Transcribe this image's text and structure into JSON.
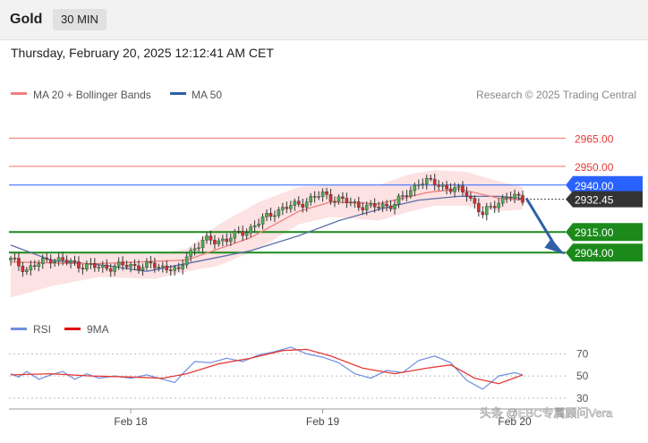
{
  "header": {
    "symbol": "Gold",
    "timeframe": "30 MIN"
  },
  "timestamp": "Thursday, February 20, 2025 12:12:41 AM CET",
  "legend": {
    "ma20_bb": "MA 20 + Bollinger Bands",
    "ma50": "MA 50",
    "credit": "Research © 2025 Trading Central"
  },
  "rsi_legend": {
    "rsi": "RSI",
    "ma9": "9MA"
  },
  "watermark": "头条 @EBC专属顾问Vera",
  "colors": {
    "red_level": "#ef5350",
    "blue_level": "#2962ff",
    "green_level": "#1b8a1b",
    "candle_up": "#4caf50",
    "candle_down": "#d32f2f",
    "bb_fill": "#fbd8d8",
    "ma20": "#f08080",
    "ma50": "#5b6fa8",
    "arrow": "#2e5fa7"
  },
  "chart_data": [
    {
      "type": "candlestick",
      "y_range": [
        2875,
        2980
      ],
      "x_ticks": [
        {
          "label": "Feb 18",
          "index": 30
        },
        {
          "label": "Feb 19",
          "index": 78
        },
        {
          "label": "Feb 20",
          "index": 126
        }
      ],
      "levels": [
        {
          "value": 2965.0,
          "label": "2965.00",
          "kind": "resistance"
        },
        {
          "value": 2950.0,
          "label": "2950.00",
          "kind": "resistance"
        },
        {
          "value": 2940.0,
          "label": "2940.00",
          "kind": "pivot"
        },
        {
          "value": 2915.0,
          "label": "2915.00",
          "kind": "support"
        },
        {
          "value": 2904.0,
          "label": "2904.00",
          "kind": "support"
        }
      ],
      "last_price": {
        "value": 2932.45,
        "label": "2932.45"
      },
      "forecast": {
        "from": 2933,
        "to": 2904
      },
      "close_keypoints": [
        [
          0,
          2900
        ],
        [
          4,
          2895
        ],
        [
          10,
          2901
        ],
        [
          16,
          2898
        ],
        [
          22,
          2896
        ],
        [
          28,
          2897
        ],
        [
          35,
          2897
        ],
        [
          40,
          2896
        ],
        [
          42,
          2893
        ],
        [
          44,
          2903
        ],
        [
          48,
          2910
        ],
        [
          54,
          2911
        ],
        [
          60,
          2917
        ],
        [
          66,
          2926
        ],
        [
          72,
          2930
        ],
        [
          78,
          2935
        ],
        [
          84,
          2931
        ],
        [
          90,
          2928
        ],
        [
          96,
          2930
        ],
        [
          100,
          2937
        ],
        [
          102,
          2942
        ],
        [
          106,
          2941
        ],
        [
          110,
          2938
        ],
        [
          114,
          2936
        ],
        [
          118,
          2924
        ],
        [
          121,
          2930
        ],
        [
          124,
          2934
        ],
        [
          128,
          2932.45
        ]
      ],
      "ma20": [
        [
          0,
          2899
        ],
        [
          20,
          2898
        ],
        [
          44,
          2900
        ],
        [
          60,
          2912
        ],
        [
          72,
          2926
        ],
        [
          80,
          2931
        ],
        [
          92,
          2930
        ],
        [
          104,
          2936
        ],
        [
          112,
          2938
        ],
        [
          122,
          2933
        ],
        [
          128,
          2932
        ]
      ],
      "ma50": [
        [
          0,
          2908
        ],
        [
          10,
          2900
        ],
        [
          24,
          2897
        ],
        [
          34,
          2894
        ],
        [
          46,
          2899
        ],
        [
          60,
          2905
        ],
        [
          72,
          2913
        ],
        [
          82,
          2921
        ],
        [
          92,
          2927
        ],
        [
          102,
          2932
        ],
        [
          112,
          2934
        ],
        [
          122,
          2934
        ],
        [
          128,
          2933
        ]
      ],
      "bb_upper": [
        [
          0,
          2905
        ],
        [
          10,
          2903
        ],
        [
          22,
          2904
        ],
        [
          36,
          2903
        ],
        [
          44,
          2906
        ],
        [
          52,
          2919
        ],
        [
          62,
          2931
        ],
        [
          72,
          2939
        ],
        [
          80,
          2940
        ],
        [
          92,
          2940
        ],
        [
          100,
          2946
        ],
        [
          106,
          2948
        ],
        [
          114,
          2947
        ],
        [
          122,
          2942
        ],
        [
          128,
          2939
        ]
      ],
      "bb_lower": [
        [
          0,
          2880
        ],
        [
          10,
          2886
        ],
        [
          22,
          2891
        ],
        [
          36,
          2890
        ],
        [
          44,
          2894
        ],
        [
          52,
          2897
        ],
        [
          62,
          2906
        ],
        [
          72,
          2919
        ],
        [
          80,
          2923
        ],
        [
          92,
          2921
        ],
        [
          100,
          2926
        ],
        [
          106,
          2929
        ],
        [
          114,
          2929
        ],
        [
          122,
          2926
        ],
        [
          128,
          2927
        ]
      ]
    },
    {
      "type": "line",
      "name": "RSI",
      "y_ticks": [
        70,
        50,
        30
      ],
      "y_range": [
        25,
        80
      ],
      "rsi": [
        [
          0,
          52
        ],
        [
          2,
          49
        ],
        [
          4,
          54
        ],
        [
          7,
          47
        ],
        [
          10,
          51
        ],
        [
          13,
          54
        ],
        [
          16,
          47
        ],
        [
          19,
          52
        ],
        [
          22,
          48
        ],
        [
          26,
          50
        ],
        [
          30,
          48
        ],
        [
          34,
          51
        ],
        [
          38,
          47
        ],
        [
          41,
          44
        ],
        [
          43,
          52
        ],
        [
          46,
          63
        ],
        [
          50,
          62
        ],
        [
          54,
          66
        ],
        [
          58,
          63
        ],
        [
          62,
          69
        ],
        [
          66,
          72
        ],
        [
          70,
          76
        ],
        [
          74,
          70
        ],
        [
          78,
          67
        ],
        [
          82,
          62
        ],
        [
          86,
          52
        ],
        [
          90,
          48
        ],
        [
          94,
          55
        ],
        [
          98,
          53
        ],
        [
          102,
          64
        ],
        [
          106,
          68
        ],
        [
          110,
          62
        ],
        [
          114,
          46
        ],
        [
          118,
          38
        ],
        [
          122,
          50
        ],
        [
          126,
          53
        ],
        [
          128,
          51
        ]
      ],
      "ma9": [
        [
          0,
          51
        ],
        [
          10,
          52
        ],
        [
          20,
          50
        ],
        [
          30,
          49
        ],
        [
          38,
          48
        ],
        [
          44,
          52
        ],
        [
          52,
          61
        ],
        [
          60,
          66
        ],
        [
          68,
          73
        ],
        [
          74,
          74
        ],
        [
          80,
          68
        ],
        [
          88,
          57
        ],
        [
          96,
          52
        ],
        [
          104,
          57
        ],
        [
          110,
          60
        ],
        [
          116,
          48
        ],
        [
          122,
          43
        ],
        [
          128,
          51
        ]
      ]
    }
  ]
}
